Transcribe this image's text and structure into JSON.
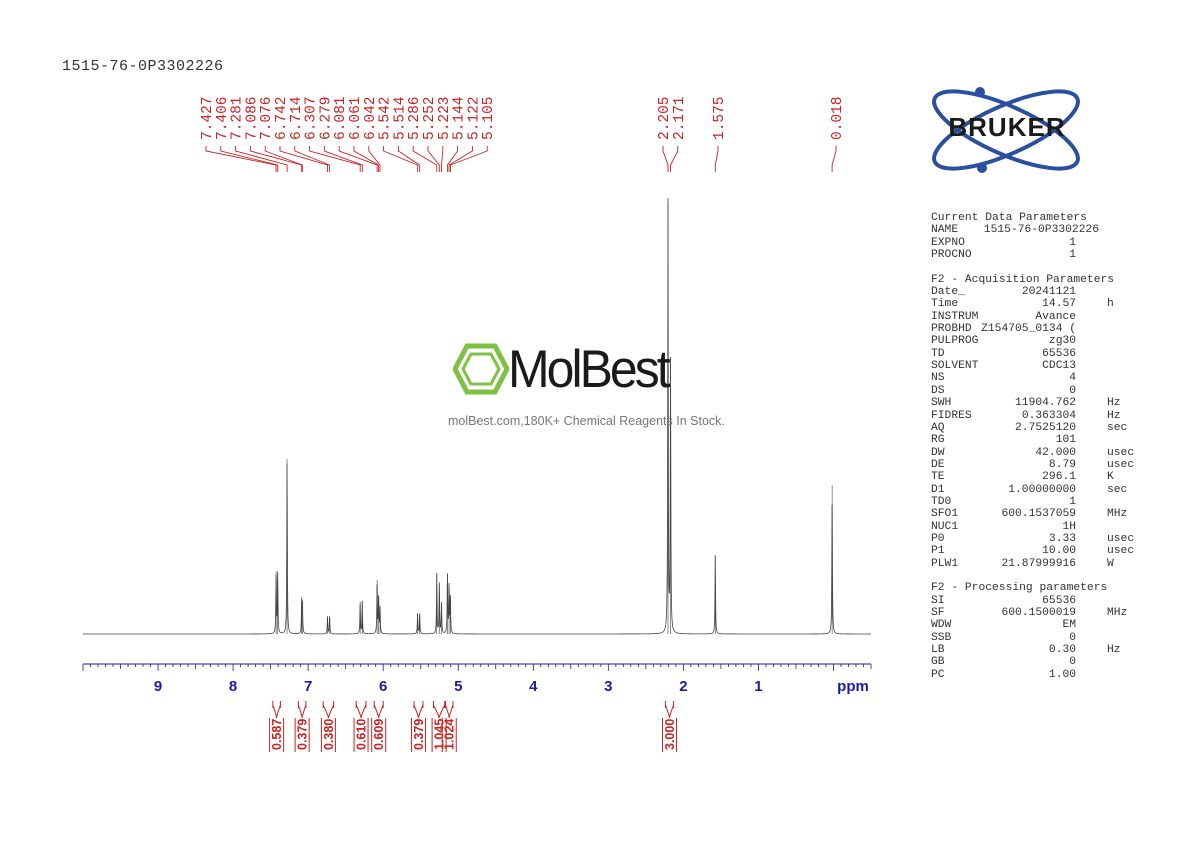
{
  "title": "1515-76-0P3302226",
  "watermark": {
    "brand": "MolBest",
    "tagline": "molBest.com,180K+ Chemical Reagents In Stock.",
    "brand_color": "#7dc242"
  },
  "logo": {
    "text": "BRUKER",
    "color": "#2a4fa0"
  },
  "colors": {
    "peak_labels": "#cc2222",
    "axis": "#1a1ab0",
    "spectrum": "#444444"
  },
  "chart_data": {
    "type": "line",
    "xlabel": "ppm",
    "xlim": [
      10.0,
      -0.5
    ],
    "x_ticks": [
      "9",
      "8",
      "7",
      "6",
      "5",
      "4",
      "3",
      "2",
      "1",
      "ppm"
    ],
    "peak_labels": [
      "7.427",
      "7.406",
      "7.281",
      "7.086",
      "7.076",
      "6.742",
      "6.714",
      "6.307",
      "6.279",
      "6.081",
      "6.061",
      "6.042",
      "5.542",
      "5.514",
      "5.286",
      "5.252",
      "5.223",
      "5.144",
      "5.122",
      "5.105",
      "2.205",
      "2.171",
      "1.575",
      "0.018"
    ],
    "integrals": [
      {
        "from": 7.47,
        "to": 7.37,
        "value": "0.587"
      },
      {
        "from": 7.13,
        "to": 7.03,
        "value": "0.379"
      },
      {
        "from": 6.8,
        "to": 6.66,
        "value": "0.380"
      },
      {
        "from": 6.36,
        "to": 6.23,
        "value": "0.610"
      },
      {
        "from": 6.12,
        "to": 6.0,
        "value": "0.609"
      },
      {
        "from": 5.59,
        "to": 5.47,
        "value": "0.379"
      },
      {
        "from": 5.33,
        "to": 5.18,
        "value": "1.045"
      },
      {
        "from": 5.17,
        "to": 5.07,
        "value": "1.024"
      },
      {
        "from": 2.24,
        "to": 2.13,
        "value": "3.000"
      }
    ],
    "peaks": [
      {
        "ppm": 7.427,
        "intensity": 0.145
      },
      {
        "ppm": 7.406,
        "intensity": 0.145
      },
      {
        "ppm": 7.281,
        "intensity": 0.405
      },
      {
        "ppm": 7.086,
        "intensity": 0.075
      },
      {
        "ppm": 7.076,
        "intensity": 0.07
      },
      {
        "ppm": 6.742,
        "intensity": 0.04
      },
      {
        "ppm": 6.714,
        "intensity": 0.042
      },
      {
        "ppm": 6.307,
        "intensity": 0.075
      },
      {
        "ppm": 6.279,
        "intensity": 0.075
      },
      {
        "ppm": 6.081,
        "intensity": 0.125
      },
      {
        "ppm": 6.061,
        "intensity": 0.09
      },
      {
        "ppm": 6.042,
        "intensity": 0.06
      },
      {
        "ppm": 5.542,
        "intensity": 0.048
      },
      {
        "ppm": 5.514,
        "intensity": 0.048
      },
      {
        "ppm": 5.286,
        "intensity": 0.14
      },
      {
        "ppm": 5.252,
        "intensity": 0.12
      },
      {
        "ppm": 5.223,
        "intensity": 0.07
      },
      {
        "ppm": 5.144,
        "intensity": 0.14
      },
      {
        "ppm": 5.122,
        "intensity": 0.115
      },
      {
        "ppm": 5.105,
        "intensity": 0.09
      },
      {
        "ppm": 2.205,
        "intensity": 1.0
      },
      {
        "ppm": 2.171,
        "intensity": 0.64
      },
      {
        "ppm": 1.575,
        "intensity": 0.183
      },
      {
        "ppm": 0.018,
        "intensity": 0.345
      }
    ]
  },
  "parameters": [
    {
      "title": "Current Data Parameters",
      "rows": [
        {
          "key": "NAME",
          "value": "1515-76-0P3302226",
          "unit": ""
        },
        {
          "key": "EXPNO",
          "value": "1",
          "unit": ""
        },
        {
          "key": "PROCNO",
          "value": "1",
          "unit": ""
        }
      ]
    },
    {
      "title": "F2 - Acquisition Parameters",
      "rows": [
        {
          "key": "Date_",
          "value": "20241121",
          "unit": ""
        },
        {
          "key": "Time",
          "value": "14.57",
          "unit": "h"
        },
        {
          "key": "INSTRUM",
          "value": "Avance",
          "unit": ""
        },
        {
          "key": "PROBHD",
          "value": "Z154705_0134 (",
          "unit": ""
        },
        {
          "key": "PULPROG",
          "value": "zg30",
          "unit": ""
        },
        {
          "key": "TD",
          "value": "65536",
          "unit": ""
        },
        {
          "key": "SOLVENT",
          "value": "CDC13",
          "unit": ""
        },
        {
          "key": "NS",
          "value": "4",
          "unit": ""
        },
        {
          "key": "DS",
          "value": "0",
          "unit": ""
        },
        {
          "key": "SWH",
          "value": "11904.762",
          "unit": "Hz"
        },
        {
          "key": "FIDRES",
          "value": "0.363304",
          "unit": "Hz"
        },
        {
          "key": "AQ",
          "value": "2.7525120",
          "unit": "sec"
        },
        {
          "key": "RG",
          "value": "101",
          "unit": ""
        },
        {
          "key": "DW",
          "value": "42.000",
          "unit": "usec"
        },
        {
          "key": "DE",
          "value": "8.79",
          "unit": "usec"
        },
        {
          "key": "TE",
          "value": "296.1",
          "unit": "K"
        },
        {
          "key": "D1",
          "value": "1.00000000",
          "unit": "sec"
        },
        {
          "key": "TD0",
          "value": "1",
          "unit": ""
        },
        {
          "key": "SFO1",
          "value": "600.1537059",
          "unit": "MHz"
        },
        {
          "key": "NUC1",
          "value": "1H",
          "unit": ""
        },
        {
          "key": "P0",
          "value": "3.33",
          "unit": "usec"
        },
        {
          "key": "P1",
          "value": "10.00",
          "unit": "usec"
        },
        {
          "key": "PLW1",
          "value": "21.87999916",
          "unit": "W"
        }
      ]
    },
    {
      "title": "F2 - Processing parameters",
      "rows": [
        {
          "key": "SI",
          "value": "65536",
          "unit": ""
        },
        {
          "key": "SF",
          "value": "600.1500019",
          "unit": "MHz"
        },
        {
          "key": "WDW",
          "value": "EM",
          "unit": ""
        },
        {
          "key": "SSB",
          "value": "0",
          "unit": ""
        },
        {
          "key": "LB",
          "value": "0.30",
          "unit": "Hz"
        },
        {
          "key": "GB",
          "value": "0",
          "unit": ""
        },
        {
          "key": "PC",
          "value": "1.00",
          "unit": ""
        }
      ]
    }
  ]
}
